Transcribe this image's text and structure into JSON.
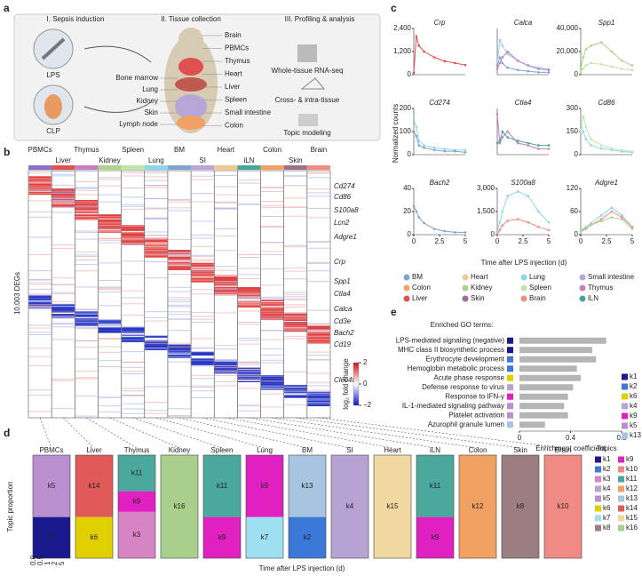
{
  "panel_labels": [
    "a",
    "b",
    "c",
    "d",
    "e"
  ],
  "panel_a": {
    "steps": [
      "I. Sepsis induction",
      "II. Tissue collection",
      "III. Profiling & analysis"
    ],
    "models": [
      "LPS",
      "CLP"
    ],
    "organs_left": [
      "Bone marrow",
      "Lung",
      "Kidney",
      "Skin",
      "Lymph node"
    ],
    "organs_right": [
      "Brain",
      "PBMCs",
      "Thymus",
      "Heart",
      "Liver",
      "Spleen",
      "Small intestine",
      "Colon"
    ],
    "methods": [
      "Whole-tissue RNA-seq",
      "Cross- & intra-tissue",
      "Topic modeling"
    ]
  },
  "panel_b": {
    "tissues": [
      "PBMCs",
      "Liver",
      "Thymus",
      "Kidney",
      "Spleen",
      "Lung",
      "BM",
      "SI",
      "Heart",
      "iLN",
      "Colon",
      "Skin",
      "Brain"
    ],
    "genes": [
      "Cd274",
      "Cd86",
      "S100a8",
      "Lcn2",
      "Adgre1",
      "Crp",
      "Spp1",
      "Ctla4",
      "Calca",
      "Cd3e",
      "Bach2",
      "Cd19",
      "Clec4f"
    ],
    "ylabel": "10,003 DEGs",
    "colorbar": {
      "title": "log₂ fold change",
      "lim": [
        -2,
        2
      ],
      "ticks": [
        2,
        0,
        {
          "value": -2,
          "label": "−2"
        }
      ]
    }
  },
  "panel_c": {
    "ylabel": "Normalized counts",
    "xlabel": "Time after LPS injection (d)",
    "legend": [
      {
        "name": "BM",
        "color": "#7fa3cf"
      },
      {
        "name": "Heart",
        "color": "#f2c98d"
      },
      {
        "name": "Lung",
        "color": "#8fd5ea"
      },
      {
        "name": "Small intestine",
        "color": "#b9a6d8"
      },
      {
        "name": "Colon",
        "color": "#f0a163"
      },
      {
        "name": "Kidney",
        "color": "#aad38c"
      },
      {
        "name": "Spleen",
        "color": "#bfe6a8"
      },
      {
        "name": "Thymus",
        "color": "#c77ec3"
      },
      {
        "name": "Liver",
        "color": "#e0504f"
      },
      {
        "name": "Skin",
        "color": "#9b7088"
      },
      {
        "name": "Brain",
        "color": "#ef8d84"
      },
      {
        "name": "iLN",
        "color": "#45a79c"
      }
    ]
  },
  "chart_data": [
    {
      "type": "line",
      "title": "Crp",
      "x": [
        0,
        0.25,
        0.5,
        1,
        2,
        3,
        4,
        5
      ],
      "xlim": [
        0,
        5
      ],
      "ylim": [
        0,
        2400
      ],
      "yticks": [
        0,
        {
          "value": 1200,
          "label": "1,200"
        },
        {
          "value": 2400,
          "label": "2,400"
        }
      ],
      "series": [
        {
          "name": "Liver",
          "color": "#e0504f",
          "values": [
            100,
            2000,
            1500,
            1200,
            900,
            700,
            600,
            500
          ]
        }
      ]
    },
    {
      "type": "line",
      "title": "Calca",
      "x": [
        0,
        0.25,
        0.5,
        1,
        2,
        3,
        4,
        5
      ],
      "xlim": [
        0,
        5
      ],
      "ylim": [
        0,
        40
      ],
      "yticks": [],
      "series": [
        {
          "name": "Lung",
          "color": "#8fd5ea",
          "values": [
            10,
            30,
            25,
            18,
            12,
            8,
            6,
            5
          ]
        },
        {
          "name": "Thymus",
          "color": "#c77ec3",
          "values": [
            5,
            10,
            15,
            20,
            12,
            8,
            5,
            4
          ]
        },
        {
          "name": "BM",
          "color": "#7fa3cf",
          "values": [
            8,
            15,
            10,
            6,
            4,
            3,
            2,
            2
          ]
        }
      ]
    },
    {
      "type": "line",
      "title": "Spp1",
      "x": [
        0,
        0.25,
        0.5,
        1,
        2,
        3,
        4,
        5
      ],
      "xlim": [
        0,
        5
      ],
      "ylim": [
        0,
        40000
      ],
      "yticks": [
        0,
        {
          "value": 20000,
          "label": "20,000"
        },
        {
          "value": 40000,
          "label": "40,000"
        }
      ],
      "series": [
        {
          "name": "Kidney",
          "color": "#aad38c",
          "values": [
            5000,
            15000,
            22000,
            25000,
            28000,
            20000,
            12000,
            8000
          ]
        },
        {
          "name": "Spleen",
          "color": "#bfe6a8",
          "values": [
            3000,
            5000,
            8000,
            10000,
            9000,
            7000,
            5000,
            4000
          ]
        }
      ]
    },
    {
      "type": "line",
      "title": "Cd274",
      "x": [
        0,
        0.25,
        0.5,
        1,
        2,
        3,
        4,
        5
      ],
      "xlim": [
        0,
        5
      ],
      "ylim": [
        0,
        200
      ],
      "yticks": [
        0,
        100,
        200
      ],
      "series": [
        {
          "name": "Lung",
          "color": "#8fd5ea",
          "values": [
            150,
            120,
            60,
            40,
            30,
            25,
            20,
            20
          ]
        },
        {
          "name": "BM",
          "color": "#7fa3cf",
          "values": [
            100,
            80,
            40,
            30,
            20,
            15,
            15,
            10
          ]
        }
      ]
    },
    {
      "type": "line",
      "title": "Ctla4",
      "x": [
        0,
        0.25,
        0.5,
        1,
        2,
        3,
        4,
        5
      ],
      "xlim": [
        0,
        5
      ],
      "ylim": [
        0,
        40
      ],
      "yticks": [],
      "series": [
        {
          "name": "Thymus",
          "color": "#c77ec3",
          "values": [
            35,
            10,
            15,
            20,
            10,
            8,
            5,
            5
          ]
        },
        {
          "name": "iLN",
          "color": "#45a79c",
          "values": [
            10,
            12,
            20,
            15,
            12,
            10,
            8,
            8
          ]
        }
      ]
    },
    {
      "type": "line",
      "title": "Cd86",
      "x": [
        0,
        0.25,
        0.5,
        1,
        2,
        3,
        4,
        5
      ],
      "xlim": [
        0,
        5
      ],
      "ylim": [
        0,
        300
      ],
      "yticks": [
        0,
        150,
        300
      ],
      "series": [
        {
          "name": "Lung",
          "color": "#8fd5ea",
          "values": [
            200,
            150,
            100,
            60,
            40,
            30,
            20,
            15
          ]
        },
        {
          "name": "Spleen",
          "color": "#bfe6a8",
          "values": [
            150,
            250,
            180,
            100,
            60,
            40,
            30,
            20
          ]
        }
      ]
    },
    {
      "type": "line",
      "title": "Bach2",
      "x": [
        0,
        0.25,
        0.5,
        1,
        2,
        3,
        4,
        5
      ],
      "xlim": [
        0,
        5
      ],
      "ylim": [
        0,
        40
      ],
      "yticks": [
        0,
        20,
        40
      ],
      "xticks": [
        0,
        2.5,
        5
      ],
      "series": [
        {
          "name": "BM",
          "color": "#7fa3cf",
          "values": [
            25,
            20,
            15,
            10,
            5,
            3,
            2,
            2
          ]
        }
      ]
    },
    {
      "type": "line",
      "title": "S100a8",
      "x": [
        0,
        0.25,
        0.5,
        1,
        2,
        3,
        4,
        5
      ],
      "xlim": [
        0,
        5
      ],
      "ylim": [
        0,
        3000
      ],
      "yticks": [
        0,
        {
          "value": 1500,
          "label": "1,500"
        },
        {
          "value": 3000,
          "label": "3,000"
        }
      ],
      "xticks": [
        0,
        2.5,
        5
      ],
      "series": [
        {
          "name": "Lung",
          "color": "#8fd5ea",
          "values": [
            200,
            800,
            1500,
            2500,
            2800,
            2500,
            1500,
            800
          ]
        },
        {
          "name": "Brain",
          "color": "#ef8d84",
          "values": [
            50,
            300,
            600,
            900,
            1000,
            800,
            500,
            300
          ]
        }
      ]
    },
    {
      "type": "line",
      "title": "Adgre1",
      "x": [
        0,
        0.25,
        0.5,
        1,
        2,
        3,
        4,
        5
      ],
      "xlim": [
        0,
        5
      ],
      "ylim": [
        0,
        120
      ],
      "yticks": [
        0,
        60,
        120
      ],
      "xticks": [
        0,
        2.5,
        5
      ],
      "series": [
        {
          "name": "Lung",
          "color": "#8fd5ea",
          "values": [
            10,
            15,
            20,
            30,
            50,
            70,
            50,
            20
          ]
        },
        {
          "name": "Brain",
          "color": "#ef8d84",
          "values": [
            10,
            12,
            15,
            25,
            40,
            60,
            45,
            20
          ]
        },
        {
          "name": "Kidney",
          "color": "#aad38c",
          "values": [
            10,
            12,
            18,
            25,
            35,
            45,
            40,
            15
          ]
        }
      ]
    },
    {
      "type": "hbar",
      "title": "Enriched GO terms:",
      "categories": [
        "LPS-mediated signaling (negative)",
        "MHC class II biosynthetic process",
        "Erythrocyte development",
        "Hemoglobin metabolic process",
        "Acute phase response",
        "Defense response to virus",
        "Response to IFN-γ",
        "IL-1-mediated signaling pathway",
        "Platelet activation",
        "Azurophil granule lumen"
      ],
      "category_colors": [
        "#1a1a8c",
        "#1a1a8c",
        "#3c78d8",
        "#3c78d8",
        "#e0d000",
        "#b7a3d3",
        "#e020c0",
        "#b98fd0",
        "#b98fd0",
        "#a8c4e0"
      ],
      "values": [
        0.68,
        0.57,
        0.6,
        0.45,
        0.48,
        0.42,
        0.38,
        0.35,
        0.38,
        0.2
      ],
      "color": "#b5b5b5",
      "xlim": [
        0,
        0.8
      ],
      "xticks": [
        0,
        0.4,
        0.8
      ],
      "xlabel": "Enrichment coefficient",
      "legend": [
        {
          "name": "k1",
          "color": "#1a1a8c"
        },
        {
          "name": "k2",
          "color": "#3c78d8"
        },
        {
          "name": "k6",
          "color": "#e0d000"
        },
        {
          "name": "k4",
          "color": "#b7a3d3"
        },
        {
          "name": "k9",
          "color": "#e020c0"
        },
        {
          "name": "k5",
          "color": "#b98fd0"
        },
        {
          "name": "k13",
          "color": "#a8c4e0"
        }
      ]
    }
  ],
  "panel_d": {
    "ylabel": "Topic proportion",
    "xlabel": "Time after LPS injection (d)",
    "xticks": [
      "0.0",
      "0.5",
      "1",
      "2",
      "5"
    ],
    "legend_title": "Topics",
    "tissues": [
      {
        "name": "PBMCs",
        "topics": [
          "k1",
          "k5"
        ]
      },
      {
        "name": "Liver",
        "topics": [
          "k6",
          "k14"
        ]
      },
      {
        "name": "Thymus",
        "topics": [
          "k3",
          "k9",
          "k11"
        ]
      },
      {
        "name": "Kidney",
        "topics": [
          "k16"
        ]
      },
      {
        "name": "Spleen",
        "topics": [
          "k9",
          "k11"
        ]
      },
      {
        "name": "Lung",
        "topics": [
          "k7",
          "k9"
        ]
      },
      {
        "name": "BM",
        "topics": [
          "k2",
          "k13"
        ]
      },
      {
        "name": "SI",
        "topics": [
          "k4"
        ]
      },
      {
        "name": "Heart",
        "topics": [
          "k15"
        ]
      },
      {
        "name": "iLN",
        "topics": [
          "k9",
          "k11"
        ]
      },
      {
        "name": "Colon",
        "topics": [
          "k12"
        ]
      },
      {
        "name": "Skin",
        "topics": [
          "k8"
        ]
      },
      {
        "name": "Brain",
        "topics": [
          "k10"
        ]
      }
    ],
    "topics": [
      {
        "name": "k1",
        "color": "#1a1a8c"
      },
      {
        "name": "k2",
        "color": "#3c78d8"
      },
      {
        "name": "k3",
        "color": "#d684c4"
      },
      {
        "name": "k4",
        "color": "#b7a3d3"
      },
      {
        "name": "k5",
        "color": "#b98fd0"
      },
      {
        "name": "k6",
        "color": "#e0d000"
      },
      {
        "name": "k7",
        "color": "#9ee0f0"
      },
      {
        "name": "k8",
        "color": "#9c7d80"
      },
      {
        "name": "k9",
        "color": "#e020c0"
      },
      {
        "name": "k10",
        "color": "#f08a84"
      },
      {
        "name": "k11",
        "color": "#4aa89c"
      },
      {
        "name": "k12",
        "color": "#f0a060"
      },
      {
        "name": "k13",
        "color": "#a8c4e0"
      },
      {
        "name": "k14",
        "color": "#e05a5a"
      },
      {
        "name": "k15",
        "color": "#f0d8a0"
      },
      {
        "name": "k16",
        "color": "#a8d08c"
      }
    ]
  }
}
